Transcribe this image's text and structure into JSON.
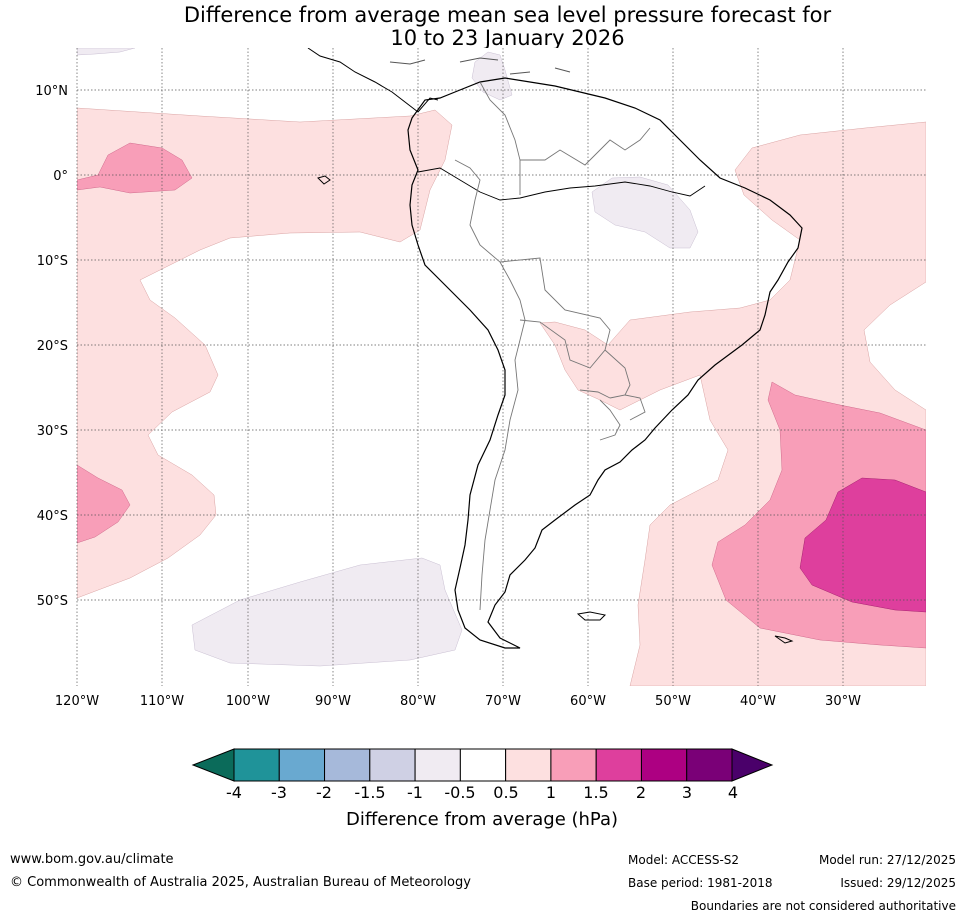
{
  "title_line1": "Difference from average mean sea level pressure forecast for",
  "title_line2": "10 to 23 January 2026",
  "map": {
    "lat_labels": [
      "10°N",
      "0°",
      "10°S",
      "20°S",
      "30°S",
      "40°S",
      "50°S"
    ],
    "lon_labels": [
      "120°W",
      "110°W",
      "100°W",
      "90°W",
      "80°W",
      "70°W",
      "60°W",
      "50°W",
      "40°W",
      "30°W"
    ]
  },
  "colorbar": {
    "label": "Difference from average (hPa)",
    "ticks": [
      "-4",
      "-3",
      "-2",
      "-1.5",
      "-1",
      "-0.5",
      "0.5",
      "1",
      "1.5",
      "2",
      "3",
      "4"
    ],
    "colors": {
      "under": "#0b6b5a",
      "bins": [
        "#1f9399",
        "#69a9d0",
        "#a6b9da",
        "#cfd0e4",
        "#f0ebf2",
        "#ffffff",
        "#fde0e0",
        "#f89eb8",
        "#de3f9d",
        "#ad0082",
        "#7a0077"
      ],
      "over": "#4a006a"
    }
  },
  "footer": {
    "website": "www.bom.gov.au/climate",
    "copyright": "© Commonwealth of Australia 2025, Australian Bureau of Meteorology",
    "model": "Model: ACCESS-S2",
    "base_period": "Base period: 1981-2018",
    "model_run": "Model run: 27/12/2025",
    "issued": "Issued: 29/12/2025",
    "disclaimer": "Boundaries are not considered authoritative"
  }
}
